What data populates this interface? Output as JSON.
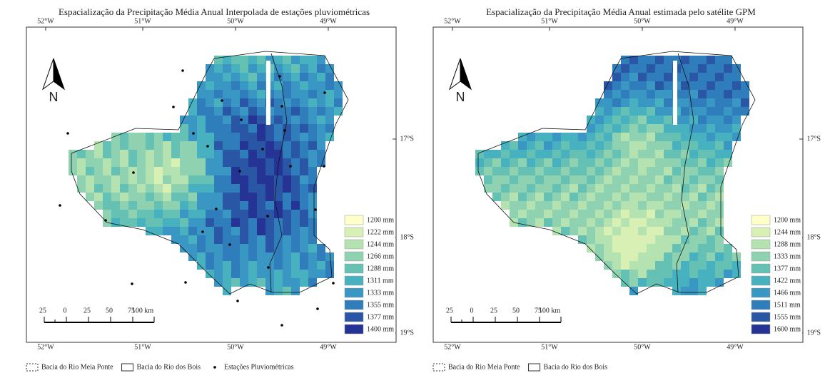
{
  "maps": [
    {
      "title": "Espacialização da Precipitação Média Anual Interpolada de estações pluviométricas",
      "lon_labels": [
        "52°W",
        "51°W",
        "50°W",
        "49°W"
      ],
      "lat_labels": [
        "17°S",
        "18°S",
        "19°S"
      ],
      "north": "N",
      "scale_labels": [
        "25",
        "0",
        "25",
        "50",
        "75",
        "100 km"
      ],
      "legend": [
        {
          "label": "1200 mm",
          "color": "#ffffc8"
        },
        {
          "label": "1222 mm",
          "color": "#d9f0b4"
        },
        {
          "label": "1244 mm",
          "color": "#b4e2b0"
        },
        {
          "label": "1266 mm",
          "color": "#8fd2b2"
        },
        {
          "label": "1288 mm",
          "color": "#66c1b5"
        },
        {
          "label": "1311 mm",
          "color": "#48b1c0"
        },
        {
          "label": "1333 mm",
          "color": "#3a97c3"
        },
        {
          "label": "1355 mm",
          "color": "#2f7dbb"
        },
        {
          "label": "1377 mm",
          "color": "#2a56a6"
        },
        {
          "label": "1400 mm",
          "color": "#253494"
        }
      ],
      "footer": [
        "Bacia do Rio Meia Ponte",
        "Bacia do Rio dos Bois",
        "Estações Pluviométricas"
      ]
    },
    {
      "title": "Espacialização da Precipitação Média Anual estimada pelo satélite GPM",
      "lon_labels": [
        "52°W",
        "51°W",
        "50°W",
        "49°W"
      ],
      "lat_labels": [
        "17°S",
        "18°S",
        "19°S"
      ],
      "north": "N",
      "scale_labels": [
        "25",
        "0",
        "25",
        "50",
        "75",
        "100 km"
      ],
      "legend": [
        {
          "label": "1200 mm",
          "color": "#ffffc8"
        },
        {
          "label": "1244 mm",
          "color": "#d9f0b4"
        },
        {
          "label": "1288 mm",
          "color": "#b4e2b0"
        },
        {
          "label": "1333 mm",
          "color": "#8fd2b2"
        },
        {
          "label": "1377 mm",
          "color": "#66c1b5"
        },
        {
          "label": "1422 mm",
          "color": "#48b1c0"
        },
        {
          "label": "1466 mm",
          "color": "#3a97c3"
        },
        {
          "label": "1511 mm",
          "color": "#2f7dbb"
        },
        {
          "label": "1555 mm",
          "color": "#2a56a6"
        },
        {
          "label": "1600 mm",
          "color": "#253494"
        }
      ],
      "footer": [
        "Bacia do Rio Meia Ponte",
        "Bacia do Rio dos Bois"
      ]
    }
  ]
}
